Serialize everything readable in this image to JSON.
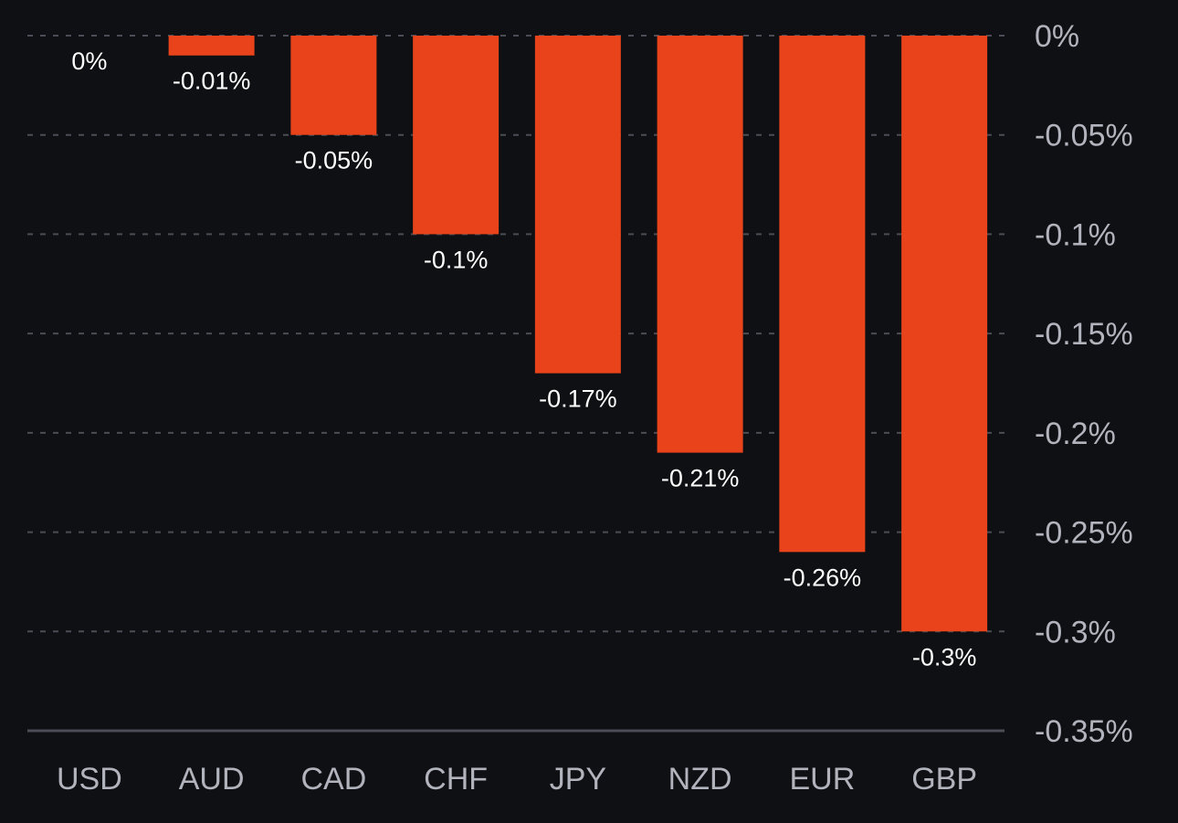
{
  "chart_data": {
    "type": "bar",
    "categories": [
      "USD",
      "AUD",
      "CAD",
      "CHF",
      "JPY",
      "NZD",
      "EUR",
      "GBP"
    ],
    "values": [
      0,
      -0.01,
      -0.05,
      -0.1,
      -0.17,
      -0.21,
      -0.26,
      -0.3
    ],
    "value_labels": [
      "0%",
      "-0.01%",
      "-0.05%",
      "-0.1%",
      "-0.17%",
      "-0.21%",
      "-0.26%",
      "-0.3%"
    ],
    "ylim": [
      -0.35,
      0
    ],
    "yticks": [
      0,
      -0.05,
      -0.1,
      -0.15,
      -0.2,
      -0.25,
      -0.3,
      -0.35
    ],
    "ytick_labels": [
      "0%",
      "-0.05%",
      "-0.1%",
      "-0.15%",
      "-0.2%",
      "-0.25%",
      "-0.3%",
      "-0.35%"
    ],
    "y_axis_position": "right",
    "grid": true,
    "colors": {
      "bar": "#e8431a",
      "background": "#0f1013",
      "grid": "#4a4d55",
      "tick_text": "#b1b4bc",
      "data_label_text": "#ffffff"
    }
  }
}
